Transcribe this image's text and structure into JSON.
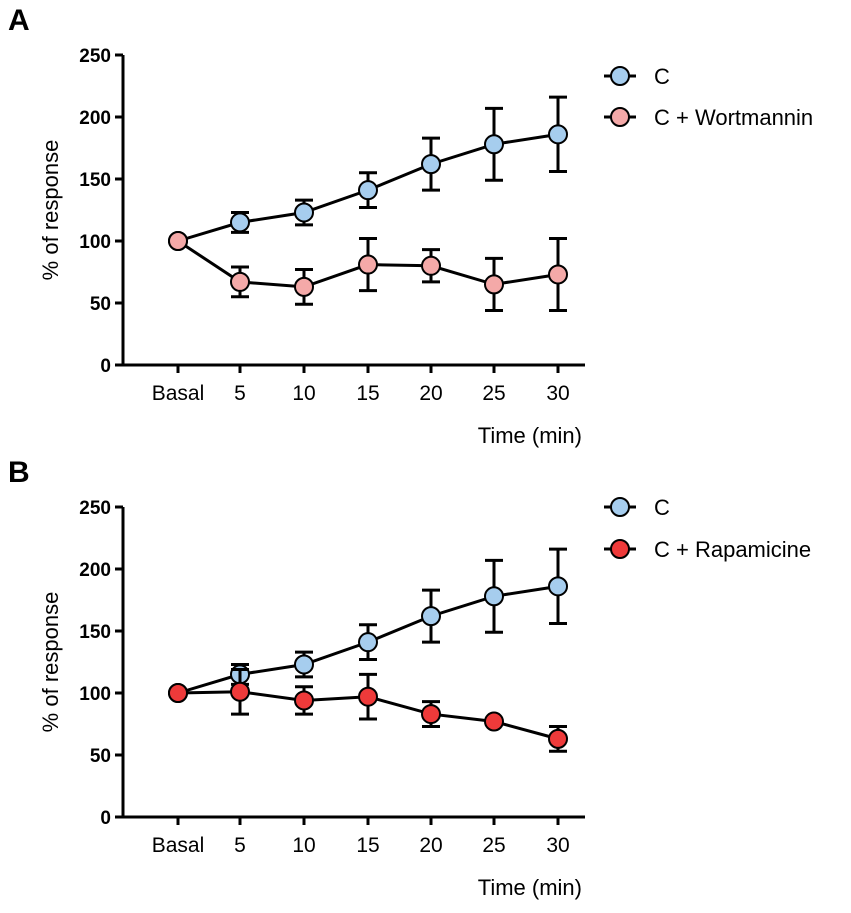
{
  "chart_data": [
    {
      "panel_label": "A",
      "type": "line",
      "categories": [
        "Basal",
        "5",
        "10",
        "15",
        "20",
        "25",
        "30"
      ],
      "xlabel": "Time (min)",
      "ylabel": "% of response",
      "ylim": [
        0,
        250
      ],
      "yticks": [
        0,
        50,
        100,
        150,
        200,
        250
      ],
      "legend_position": "top-right",
      "series": [
        {
          "name": "C",
          "color": "#a6cdee",
          "values": [
            100,
            115,
            123,
            141,
            162,
            178,
            186
          ],
          "errors": [
            null,
            8,
            10,
            14,
            21,
            29,
            30
          ]
        },
        {
          "name": "C + Wortmannin",
          "color": "#f4a9a8",
          "values": [
            100,
            67,
            63,
            81,
            80,
            65,
            73
          ],
          "errors": [
            null,
            12,
            14,
            21,
            13,
            21,
            29
          ]
        }
      ]
    },
    {
      "panel_label": "B",
      "type": "line",
      "categories": [
        "Basal",
        "5",
        "10",
        "15",
        "20",
        "25",
        "30"
      ],
      "xlabel": "Time (min)",
      "ylabel": "% of response",
      "ylim": [
        0,
        250
      ],
      "yticks": [
        0,
        50,
        100,
        150,
        200,
        250
      ],
      "legend_position": "top-right",
      "series": [
        {
          "name": "C",
          "color": "#a6cdee",
          "values": [
            100,
            115,
            123,
            141,
            162,
            178,
            186
          ],
          "errors": [
            null,
            8,
            10,
            14,
            21,
            29,
            30
          ]
        },
        {
          "name": "C + Rapamicine",
          "color": "#ee3a3a",
          "values": [
            100,
            101,
            94,
            97,
            83,
            77,
            63
          ],
          "errors": [
            null,
            18,
            11,
            18,
            10,
            2,
            10
          ]
        }
      ]
    }
  ]
}
